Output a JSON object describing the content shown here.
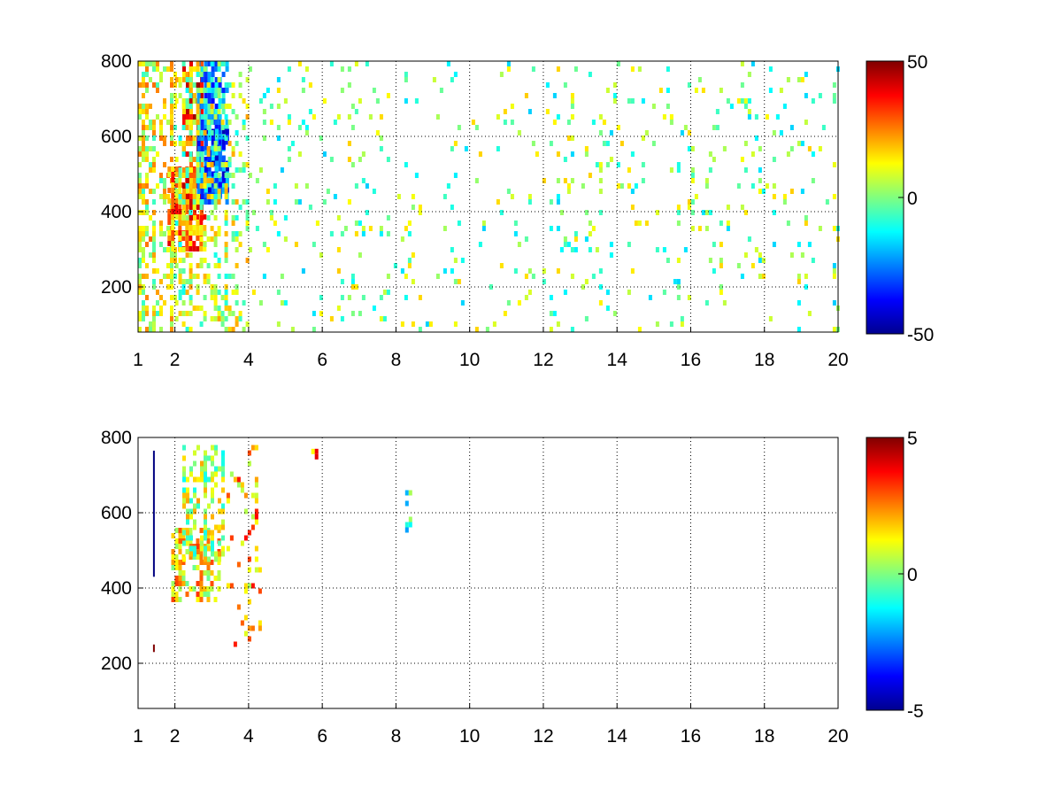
{
  "chart_data": [
    {
      "type": "heatmap",
      "title": "",
      "xlabel": "",
      "ylabel": "",
      "xlim": [
        1,
        20
      ],
      "ylim": [
        80,
        800
      ],
      "xticks": [
        1,
        2,
        4,
        6,
        8,
        10,
        12,
        14,
        16,
        18,
        20
      ],
      "yticks": [
        200,
        400,
        600,
        800
      ],
      "grid": true,
      "grid_style": "dotted",
      "colormap": "jet",
      "clim": [
        -50,
        50
      ],
      "colorbar_ticks": [
        -50,
        0,
        50
      ],
      "colorbar_placement": "right",
      "regions": [
        {
          "x": [
            1.0,
            2.0
          ],
          "y": [
            80,
            800
          ],
          "value": 10,
          "density": 0.45
        },
        {
          "x": [
            1.8,
            2.8
          ],
          "y": [
            300,
            520
          ],
          "value": 25,
          "density": 0.75
        },
        {
          "x": [
            2.2,
            2.7
          ],
          "y": [
            380,
            800
          ],
          "value": 30,
          "density": 0.7
        },
        {
          "x": [
            2.6,
            3.4
          ],
          "y": [
            430,
            800
          ],
          "value": -20,
          "density": 0.7
        },
        {
          "x": [
            2.8,
            3.4
          ],
          "y": [
            450,
            620
          ],
          "value": -30,
          "density": 0.6
        },
        {
          "x": [
            2.0,
            4.0
          ],
          "y": [
            80,
            800
          ],
          "value": 5,
          "density": 0.3
        },
        {
          "x": [
            4.0,
            20.0
          ],
          "y": [
            80,
            800
          ],
          "value": 0,
          "density": 0.06
        }
      ]
    },
    {
      "type": "heatmap",
      "title": "",
      "xlabel": "",
      "ylabel": "",
      "xlim": [
        1,
        20
      ],
      "ylim": [
        80,
        800
      ],
      "xticks": [
        1,
        2,
        4,
        6,
        8,
        10,
        12,
        14,
        16,
        18,
        20
      ],
      "yticks": [
        200,
        400,
        600,
        800
      ],
      "grid": true,
      "grid_style": "dotted",
      "colormap": "jet",
      "clim": [
        -5,
        5
      ],
      "colorbar_ticks": [
        -5,
        0,
        5
      ],
      "colorbar_placement": "right",
      "regions": [
        {
          "x": [
            1.9,
            3.2
          ],
          "y": [
            370,
            560
          ],
          "value": 1.5,
          "density": 0.55
        },
        {
          "x": [
            2.2,
            3.3
          ],
          "y": [
            480,
            780
          ],
          "value": 0.5,
          "density": 0.45
        },
        {
          "x": [
            3.4,
            4.3
          ],
          "y": [
            250,
            780
          ],
          "value": 2,
          "density": 0.12
        },
        {
          "x": [
            8.25,
            8.4
          ],
          "y": [
            560,
            660
          ],
          "value": -1,
          "density": 0.5
        },
        {
          "x": [
            5.7,
            5.85
          ],
          "y": [
            750,
            770
          ],
          "value": 3,
          "density": 0.8
        }
      ],
      "lines": [
        {
          "x": 1.43,
          "y": [
            430,
            765
          ],
          "value": -5
        },
        {
          "x": 1.43,
          "y": [
            230,
            250
          ],
          "value": 5
        }
      ]
    }
  ]
}
